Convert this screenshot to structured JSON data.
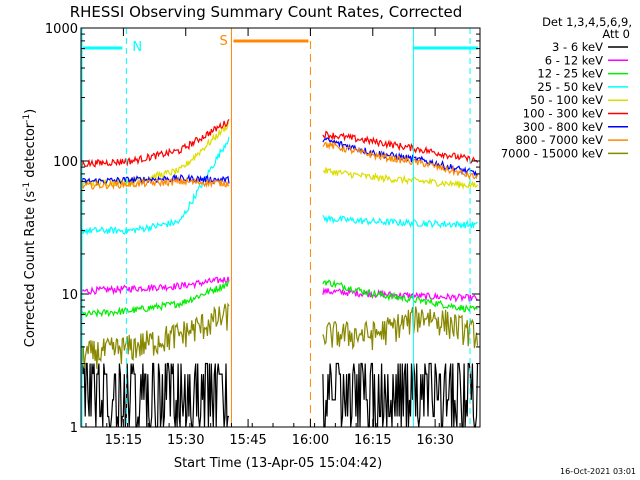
{
  "chart_data": {
    "type": "line",
    "title": "RHESSI Observing Summary Count Rates, Corrected",
    "xlabel": "Start Time (13-Apr-05 15:04:42)",
    "ylabel": "Corrected Count Rate (s⁻¹ detector⁻¹)",
    "ylabel_main": "Corrected Count Rate (s",
    "ylabel_sup1": "-1",
    "ylabel_mid": " detector",
    "ylabel_sup2": "-1",
    "ylabel_end": ")",
    "x_range_minutes": [
      15.08,
      16.68
    ],
    "y_scale": "log",
    "ylim": [
      1,
      1000
    ],
    "x_ticks": [
      "15:15",
      "15:30",
      "15:45",
      "16:00",
      "16:15",
      "16:30"
    ],
    "x_tick_hours": [
      15.25,
      15.5,
      15.75,
      16.0,
      16.25,
      16.5
    ],
    "y_ticks": [
      "1",
      "10",
      "100",
      "1000"
    ],
    "y_tick_values": [
      1,
      10,
      100,
      1000
    ],
    "legend_header": [
      "Det 1,3,4,5,6,9,",
      "Att 0"
    ],
    "legend_placement": "right",
    "series": [
      {
        "name": "3 - 6 keV",
        "color": "#000000",
        "before": [
          1.6,
          1.6,
          1.6,
          1.6
        ],
        "after": [
          1.6,
          1.6,
          1.6,
          1.6
        ]
      },
      {
        "name": "6 - 12 keV",
        "color": "#ff00ff",
        "before": [
          10.5,
          11.0,
          11.5,
          13.0
        ],
        "after": [
          10.5,
          10.0,
          9.6,
          9.3
        ]
      },
      {
        "name": "12 - 25 keV",
        "color": "#00ee00",
        "before": [
          7.0,
          7.5,
          8.5,
          12.0
        ],
        "after": [
          12.5,
          10.0,
          8.8,
          7.5
        ]
      },
      {
        "name": "25 - 50 keV",
        "color": "#00ffff",
        "before": [
          30.0,
          30.0,
          35.0,
          150.0
        ],
        "after": [
          37.0,
          35.0,
          34.0,
          33.0
        ]
      },
      {
        "name": "50 - 100 keV",
        "color": "#dddd00",
        "before": [
          68.0,
          70.0,
          85.0,
          190.0
        ],
        "after": [
          85.0,
          75.0,
          70.0,
          65.0
        ]
      },
      {
        "name": "100 - 300 keV",
        "color": "#ff0000",
        "before": [
          95.0,
          100.0,
          120.0,
          200.0
        ],
        "after": [
          160.0,
          140.0,
          120.0,
          100.0
        ]
      },
      {
        "name": "300 - 800 keV",
        "color": "#0000ff",
        "before": [
          70.0,
          72.0,
          74.0,
          72.0
        ],
        "after": [
          145.0,
          115.0,
          100.0,
          80.0
        ]
      },
      {
        "name": "800 - 7000 keV",
        "color": "#ff8800",
        "before": [
          65.0,
          67.0,
          70.0,
          68.0
        ],
        "after": [
          135.0,
          110.0,
          95.0,
          75.0
        ]
      },
      {
        "name": "7000 - 15000 keV",
        "color": "#888800",
        "before": [
          3.5,
          4.0,
          5.0,
          7.0
        ],
        "after": [
          5.0,
          5.0,
          7.0,
          5.0
        ]
      }
    ],
    "gap_hours": [
      15.6833,
      16.0
    ],
    "annotations": {
      "night_label": "N",
      "saa_label": "S",
      "timestamp": "16-Oct-2021 03:01"
    }
  }
}
